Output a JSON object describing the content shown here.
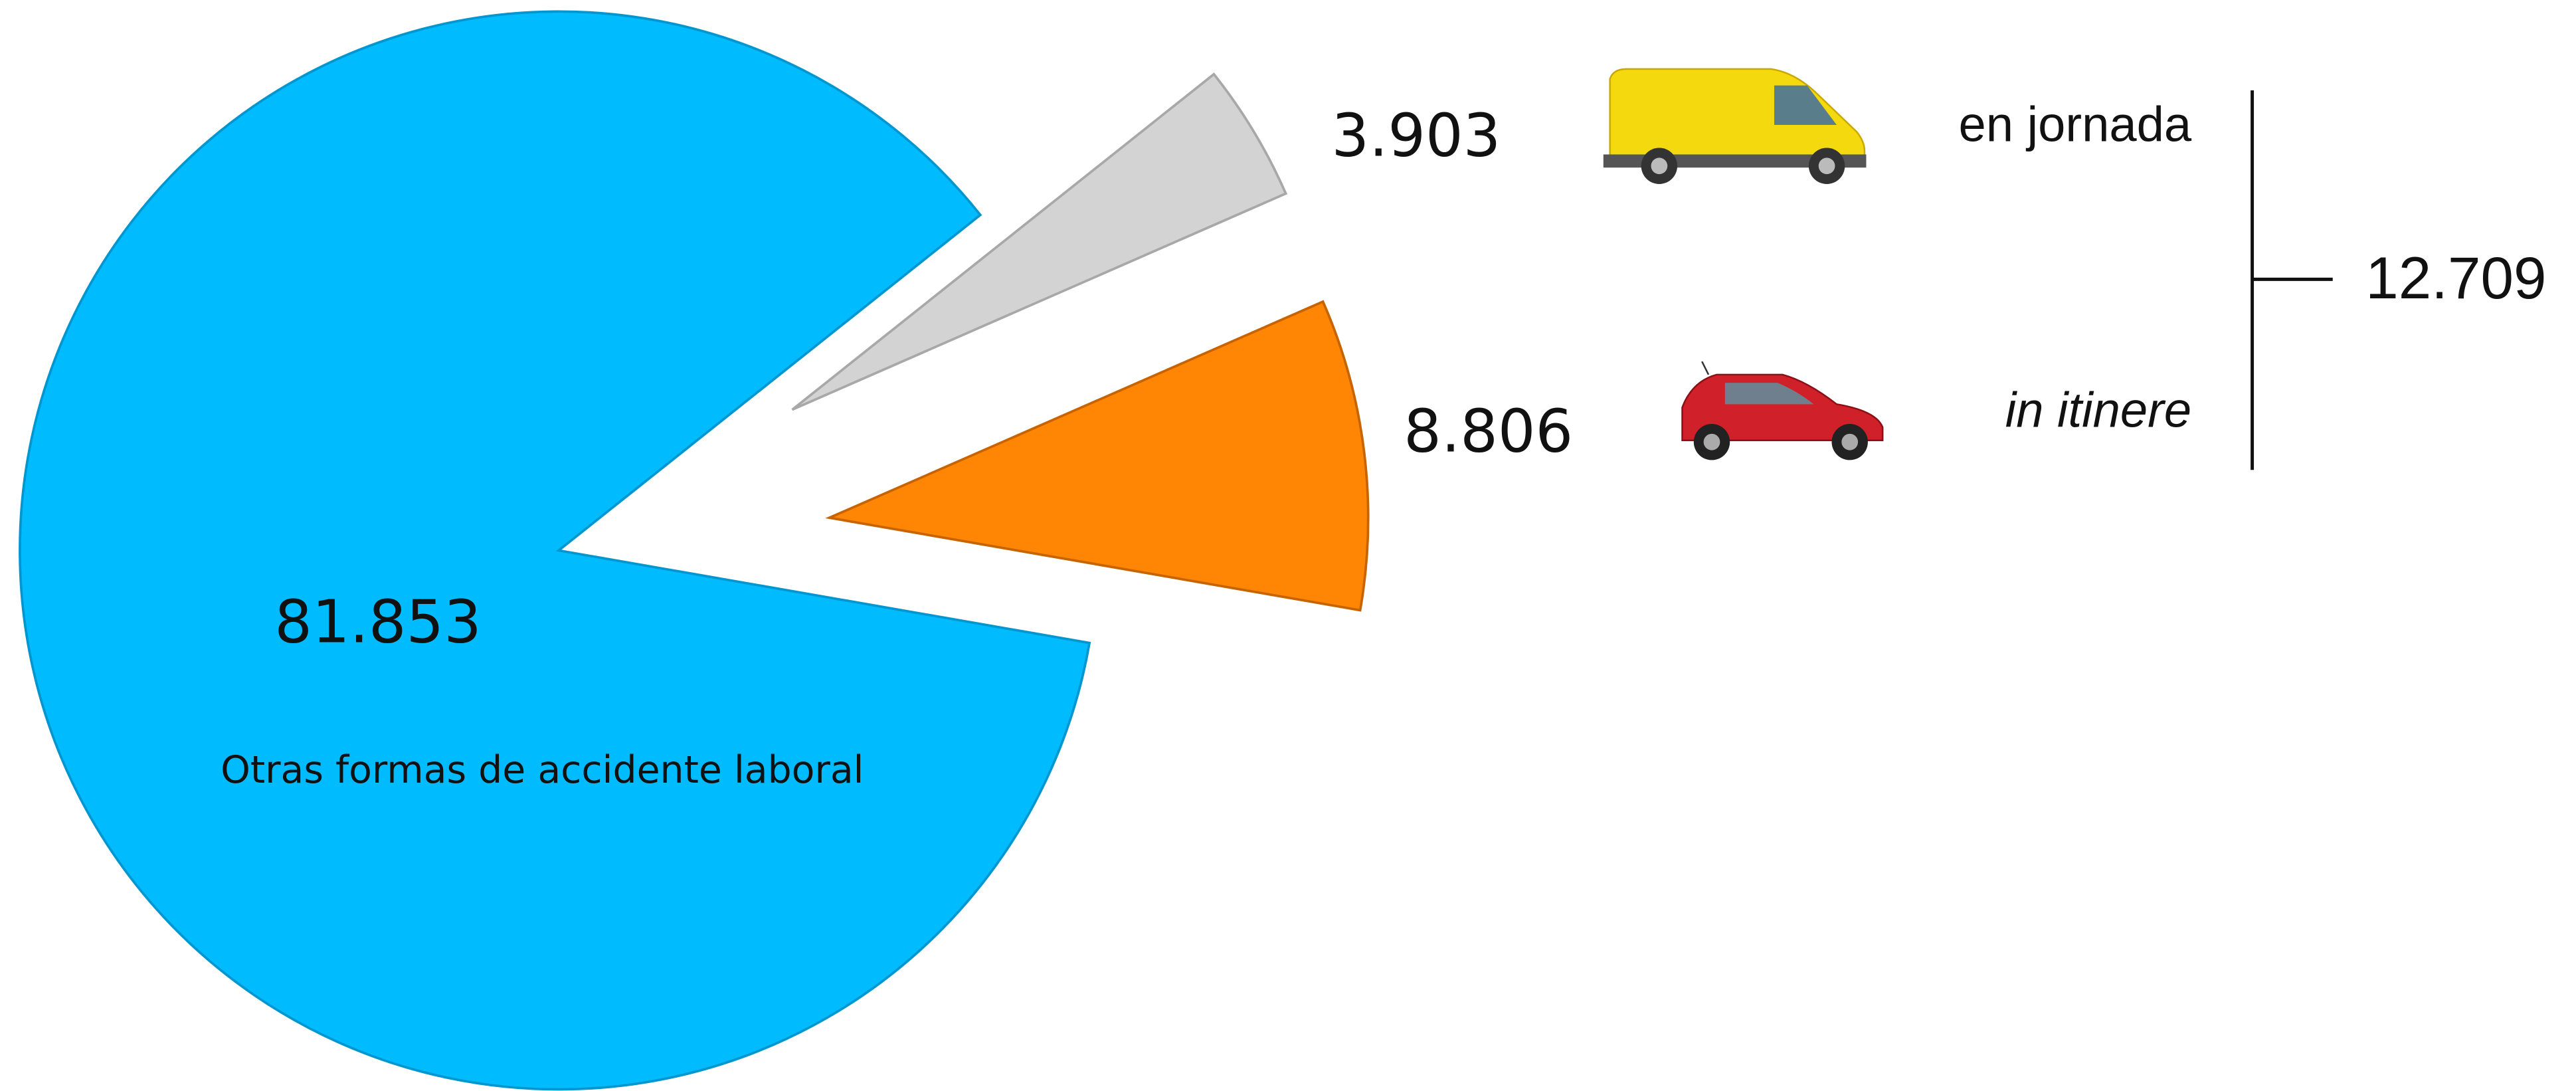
{
  "chart_data": {
    "type": "pie",
    "categories": [
      "Otras formas de accidente laboral",
      "en jornada",
      "in itinere"
    ],
    "values": [
      81853,
      3903,
      8806
    ],
    "value_labels": [
      "81.853",
      "3.903",
      "8.806"
    ],
    "colors": [
      "#00bcff",
      "#d3d3d3",
      "#ff8605"
    ],
    "total": {
      "value": 12709,
      "label": "12.709"
    }
  }
}
